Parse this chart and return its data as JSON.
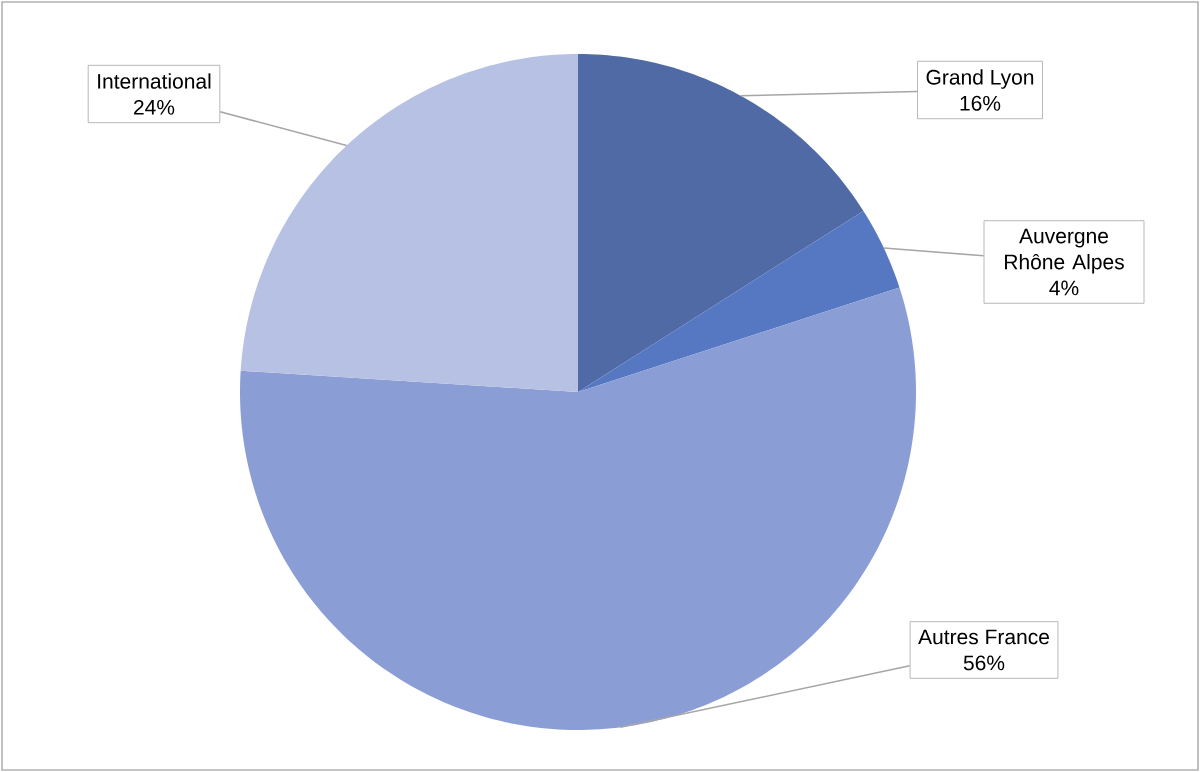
{
  "chart_data": {
    "type": "pie",
    "categories": [
      "Grand Lyon",
      "Auvergne Rhône Alpes",
      "Autres France",
      "International"
    ],
    "values": [
      16,
      4,
      56,
      24
    ],
    "value_labels": [
      "16%",
      "4%",
      "56%",
      "24%"
    ],
    "colors": [
      "#4f6aa5",
      "#5677c2",
      "#8a9dd5",
      "#b7c1e3"
    ]
  }
}
